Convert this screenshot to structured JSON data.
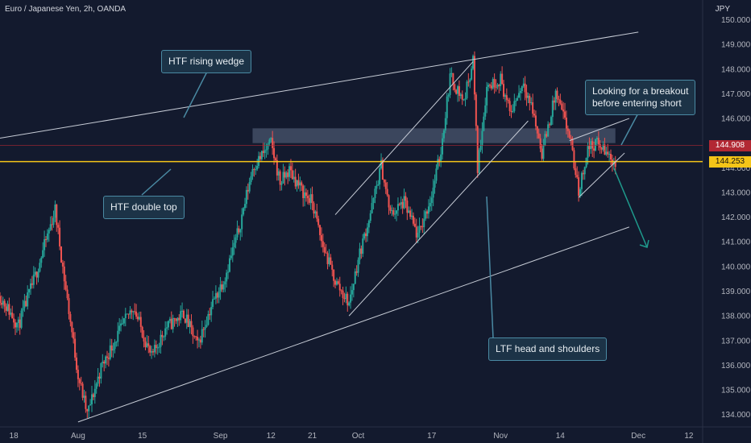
{
  "header": {
    "symbol_label": "Euro / Japanese Yen, 2h, OANDA",
    "currency": "JPY"
  },
  "price_markers": {
    "last": {
      "value": "144.908",
      "color": "#b22833"
    },
    "line": {
      "value": "144.253",
      "color": "#f5c518"
    }
  },
  "annotations": {
    "rising_wedge": "HTF rising wedge",
    "double_top": "HTF double top",
    "head_shoulders": "LTF head and shoulders",
    "breakout_line1": "Looking for a breakout",
    "breakout_line2": "before entering short"
  },
  "colors": {
    "background": "#131a2e",
    "up_candle": "#26a69a",
    "down_candle": "#ef5350",
    "wedge_line": "#c7ccd6",
    "callout_border": "#4a8aa3",
    "resistance_zone": "#5d6b85",
    "projection_arrow": "#1f9a8c"
  },
  "chart_data": {
    "type": "candlestick",
    "title": "Euro / Japanese Yen, 2h, OANDA",
    "ylabel": "JPY",
    "ylim": [
      133.5,
      150.8
    ],
    "y_ticks": [
      "150.000",
      "149.000",
      "148.000",
      "147.000",
      "146.000",
      "145.000",
      "144.000",
      "143.000",
      "142.000",
      "141.000",
      "140.000",
      "139.000",
      "138.000",
      "137.000",
      "136.000",
      "135.000",
      "134.000"
    ],
    "x_ticks": [
      "18",
      "Aug",
      "15",
      "Sep",
      "12",
      "21",
      "Oct",
      "17",
      "Nov",
      "14",
      "Dec",
      "12"
    ],
    "x_domain": [
      "2022-07-15",
      "2022-12-15"
    ],
    "x_tick_dates": [
      "2022-07-18",
      "2022-08-01",
      "2022-08-15",
      "2022-09-01",
      "2022-09-12",
      "2022-09-21",
      "2022-10-01",
      "2022-10-17",
      "2022-11-01",
      "2022-11-14",
      "2022-12-01",
      "2022-12-12"
    ],
    "price_path": [
      [
        "2022-07-15",
        138.8
      ],
      [
        "2022-07-19",
        137.6
      ],
      [
        "2022-07-23",
        139.8
      ],
      [
        "2022-07-27",
        142.3
      ],
      [
        "2022-07-29",
        139.5
      ],
      [
        "2022-08-01",
        135.6
      ],
      [
        "2022-08-03",
        134.0
      ],
      [
        "2022-08-06",
        135.9
      ],
      [
        "2022-08-09",
        137.0
      ],
      [
        "2022-08-13",
        138.4
      ],
      [
        "2022-08-17",
        136.3
      ],
      [
        "2022-08-20",
        137.5
      ],
      [
        "2022-08-24",
        138.1
      ],
      [
        "2022-08-27",
        136.8
      ],
      [
        "2022-08-30",
        138.4
      ],
      [
        "2022-09-02",
        139.6
      ],
      [
        "2022-09-05",
        141.5
      ],
      [
        "2022-09-08",
        144.0
      ],
      [
        "2022-09-12",
        145.0
      ],
      [
        "2022-09-14",
        143.4
      ],
      [
        "2022-09-16",
        143.9
      ],
      [
        "2022-09-19",
        143.0
      ],
      [
        "2022-09-21",
        142.6
      ],
      [
        "2022-09-23",
        141.0
      ],
      [
        "2022-09-26",
        139.4
      ],
      [
        "2022-09-29",
        138.5
      ],
      [
        "2022-10-01",
        140.3
      ],
      [
        "2022-10-04",
        142.4
      ],
      [
        "2022-10-06",
        144.1
      ],
      [
        "2022-10-08",
        142.1
      ],
      [
        "2022-10-11",
        142.6
      ],
      [
        "2022-10-14",
        141.2
      ],
      [
        "2022-10-17",
        142.9
      ],
      [
        "2022-10-19",
        144.7
      ],
      [
        "2022-10-21",
        147.7
      ],
      [
        "2022-10-24",
        146.7
      ],
      [
        "2022-10-26",
        148.4
      ],
      [
        "2022-10-27",
        144.0
      ],
      [
        "2022-10-29",
        147.3
      ],
      [
        "2022-11-01",
        147.6
      ],
      [
        "2022-11-03",
        146.2
      ],
      [
        "2022-11-06",
        147.5
      ],
      [
        "2022-11-08",
        146.3
      ],
      [
        "2022-11-10",
        144.6
      ],
      [
        "2022-11-13",
        147.0
      ],
      [
        "2022-11-16",
        145.3
      ],
      [
        "2022-11-18",
        143.0
      ],
      [
        "2022-11-20",
        144.8
      ],
      [
        "2022-11-22",
        145.0
      ],
      [
        "2022-11-24",
        144.6
      ],
      [
        "2022-11-26",
        144.2
      ]
    ],
    "up_color": "#26a69a",
    "down_color": "#ef5350",
    "horizontal_lines": [
      144.908,
      144.253
    ],
    "resistance_zone": [
      145.0,
      145.6
    ],
    "grid": false
  }
}
